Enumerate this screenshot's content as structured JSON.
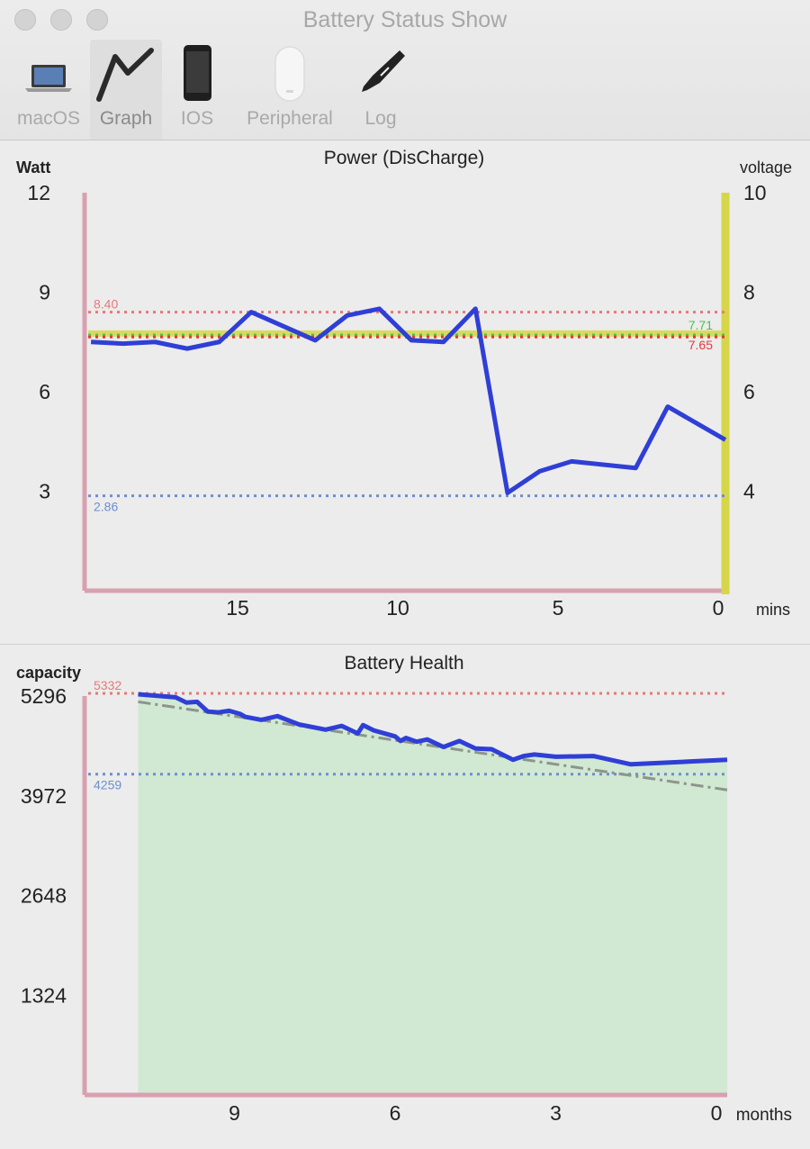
{
  "window": {
    "title": "Battery Status Show",
    "traffic_colors": [
      "#d3d3d3",
      "#d3d3d3",
      "#d3d3d3"
    ]
  },
  "toolbar": {
    "tabs": [
      {
        "label": "macOS",
        "icon": "laptop-icon",
        "active": false
      },
      {
        "label": "Graph",
        "icon": "line-graph-icon",
        "active": true
      },
      {
        "label": "IOS",
        "icon": "iphone-icon",
        "active": false
      },
      {
        "label": "Peripheral",
        "icon": "mouse-icon",
        "active": false
      },
      {
        "label": "Log",
        "icon": "pen-icon",
        "active": false
      }
    ]
  },
  "chart_data": [
    {
      "type": "line",
      "title": "Power (DisCharge)",
      "ylabel_left": "Watt",
      "ylabel_right": "voltage",
      "xlabel": "mins",
      "x_ticks": [
        15,
        10,
        5,
        0
      ],
      "y_ticks_left": [
        12,
        9,
        6,
        3
      ],
      "y_ticks_right": [
        10,
        8,
        6,
        4
      ],
      "ylim_left": [
        0,
        12
      ],
      "ylim_right": [
        2,
        10
      ],
      "xlim": [
        20,
        0
      ],
      "series": [
        {
          "color": "#2f3fd6",
          "x": [
            19.8,
            18.8,
            17.8,
            16.8,
            15.8,
            14.8,
            12.8,
            11.8,
            10.8,
            9.8,
            8.8,
            7.8,
            6.8,
            5.8,
            4.8,
            2.8,
            1.8,
            0
          ],
          "y": [
            7.5,
            7.45,
            7.5,
            7.3,
            7.5,
            8.4,
            7.55,
            8.3,
            8.5,
            7.55,
            7.5,
            8.5,
            2.95,
            3.6,
            3.9,
            3.7,
            5.55,
            4.55
          ]
        }
      ],
      "reference_lines": [
        {
          "label": "8.40",
          "value": 8.4,
          "color": "#e87878"
        },
        {
          "label": "7.71",
          "value": 7.71,
          "color": "#4ac24a"
        },
        {
          "label": "7.65",
          "value": 7.65,
          "color": "#e03a3a"
        },
        {
          "label": "2.86",
          "value": 2.86,
          "color": "#6b8fd0"
        }
      ],
      "voltage_line": {
        "value": 7.7,
        "color": "#d6d64a"
      }
    },
    {
      "type": "area",
      "title": "Battery Health",
      "ylabel": "capacity",
      "xlabel": "months",
      "x_ticks": [
        9,
        6,
        3,
        0
      ],
      "y_ticks": [
        5296,
        3972,
        2648,
        1324
      ],
      "ylim": [
        0,
        5296
      ],
      "xlim": [
        12,
        0
      ],
      "series": [
        {
          "color": "#2f3fd6",
          "fill": "#d1e8d3",
          "x": [
            11.0,
            10.3,
            10.1,
            9.9,
            9.7,
            9.5,
            9.3,
            9.1,
            9.0,
            8.7,
            8.4,
            8.0,
            7.5,
            7.2,
            6.9,
            6.8,
            6.6,
            6.2,
            6.1,
            6.0,
            5.8,
            5.6,
            5.3,
            5.0,
            4.7,
            4.4,
            4.0,
            3.8,
            3.6,
            3.2,
            2.5,
            1.8,
            0
          ],
          "y": [
            5320,
            5280,
            5210,
            5220,
            5090,
            5080,
            5100,
            5060,
            5020,
            4980,
            5030,
            4920,
            4850,
            4900,
            4800,
            4910,
            4840,
            4760,
            4700,
            4740,
            4690,
            4720,
            4620,
            4700,
            4600,
            4590,
            4450,
            4500,
            4520,
            4490,
            4500,
            4390,
            4450
          ]
        }
      ],
      "trend_line": {
        "x": [
          11.0,
          0
        ],
        "y": [
          5220,
          4050
        ],
        "color": "#8c958c"
      },
      "reference_lines": [
        {
          "label": "5332",
          "value": 5332,
          "color": "#e87878"
        },
        {
          "label": "4259",
          "value": 4259,
          "color": "#6b8fd0"
        }
      ]
    }
  ]
}
